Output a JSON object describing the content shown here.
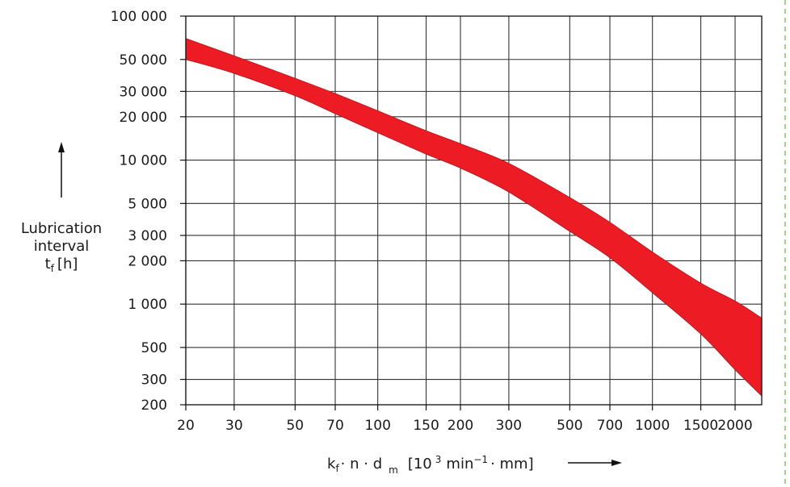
{
  "chart_data": {
    "type": "area",
    "title": "",
    "x_scale": "log",
    "y_scale": "log",
    "xlim": [
      20,
      2500
    ],
    "ylim": [
      200,
      100000
    ],
    "x_ticks": [
      20,
      30,
      50,
      70,
      100,
      150,
      200,
      300,
      500,
      700,
      1000,
      1500,
      2000
    ],
    "x_tick_labels": [
      "20",
      "30",
      "50",
      "70",
      "100",
      "150",
      "200",
      "300",
      "500",
      "700",
      "1000",
      "1500",
      "2000"
    ],
    "y_ticks": [
      200,
      300,
      500,
      1000,
      2000,
      3000,
      5000,
      10000,
      20000,
      30000,
      50000,
      100000
    ],
    "y_tick_labels": [
      "200",
      "300",
      "500",
      "1 000",
      "2 000",
      "3 000",
      "5 000",
      "10 000",
      "20 000",
      "30 000",
      "50 000",
      "100 000"
    ],
    "ylabel": {
      "line1": "Lubrication",
      "line2": "interval",
      "symbol": "t",
      "symbol_sub": "f",
      "unit": "[h]"
    },
    "xlabel": {
      "k": "k",
      "k_sub": "f",
      "rest": "· n · d",
      "dm_sub": "m",
      "unit_open": "[10",
      "unit_exp": "3",
      "unit_mid": "min",
      "unit_exp2": "−1",
      "unit_close": "· mm]"
    },
    "band": {
      "color": "#ed1c24",
      "x": [
        20,
        30,
        50,
        70,
        100,
        150,
        200,
        300,
        500,
        700,
        1000,
        1500,
        2000,
        2500
      ],
      "upper": [
        70000,
        53000,
        37000,
        29000,
        22000,
        16000,
        13000,
        9500,
        5500,
        3700,
        2300,
        1400,
        1050,
        800
      ],
      "lower": [
        50000,
        40000,
        28000,
        21000,
        15500,
        11000,
        8800,
        6000,
        3200,
        2100,
        1200,
        620,
        350,
        230
      ]
    }
  }
}
